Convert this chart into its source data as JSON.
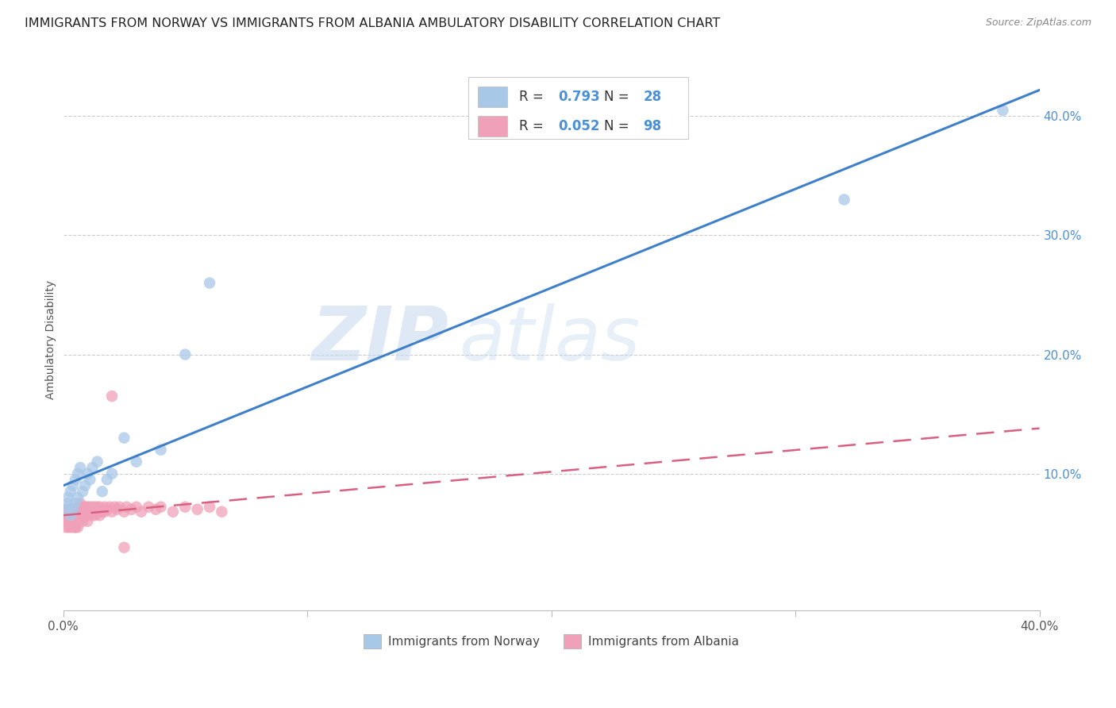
{
  "title": "IMMIGRANTS FROM NORWAY VS IMMIGRANTS FROM ALBANIA AMBULATORY DISABILITY CORRELATION CHART",
  "source": "Source: ZipAtlas.com",
  "ylabel": "Ambulatory Disability",
  "xlim": [
    0.0,
    0.4
  ],
  "ylim": [
    -0.015,
    0.44
  ],
  "norway_R": 0.793,
  "norway_N": 28,
  "albania_R": 0.052,
  "albania_N": 98,
  "norway_color": "#A8C8E8",
  "albania_color": "#F0A0B8",
  "norway_line_color": "#4080C8",
  "albania_line_color": "#D86080",
  "watermark_zip": "ZIP",
  "watermark_atlas": "atlas",
  "norway_x": [
    0.001,
    0.002,
    0.002,
    0.003,
    0.003,
    0.004,
    0.004,
    0.005,
    0.005,
    0.006,
    0.006,
    0.007,
    0.008,
    0.009,
    0.01,
    0.011,
    0.012,
    0.014,
    0.016,
    0.018,
    0.02,
    0.025,
    0.03,
    0.04,
    0.05,
    0.06,
    0.32,
    0.385
  ],
  "norway_y": [
    0.07,
    0.075,
    0.08,
    0.065,
    0.085,
    0.07,
    0.09,
    0.075,
    0.095,
    0.08,
    0.1,
    0.105,
    0.085,
    0.09,
    0.1,
    0.095,
    0.105,
    0.11,
    0.085,
    0.095,
    0.1,
    0.13,
    0.11,
    0.12,
    0.2,
    0.26,
    0.33,
    0.405
  ],
  "albania_x": [
    0.0005,
    0.001,
    0.001,
    0.001,
    0.001,
    0.002,
    0.002,
    0.002,
    0.002,
    0.002,
    0.002,
    0.003,
    0.003,
    0.003,
    0.003,
    0.003,
    0.003,
    0.003,
    0.004,
    0.004,
    0.004,
    0.004,
    0.004,
    0.004,
    0.004,
    0.005,
    0.005,
    0.005,
    0.005,
    0.005,
    0.005,
    0.005,
    0.005,
    0.006,
    0.006,
    0.006,
    0.006,
    0.006,
    0.006,
    0.007,
    0.007,
    0.007,
    0.007,
    0.007,
    0.008,
    0.008,
    0.008,
    0.008,
    0.008,
    0.009,
    0.009,
    0.009,
    0.009,
    0.01,
    0.01,
    0.01,
    0.01,
    0.01,
    0.011,
    0.011,
    0.011,
    0.012,
    0.012,
    0.012,
    0.012,
    0.013,
    0.013,
    0.013,
    0.014,
    0.014,
    0.015,
    0.015,
    0.015,
    0.016,
    0.016,
    0.017,
    0.017,
    0.018,
    0.019,
    0.02,
    0.021,
    0.022,
    0.023,
    0.025,
    0.026,
    0.028,
    0.03,
    0.032,
    0.035,
    0.038,
    0.04,
    0.045,
    0.05,
    0.055,
    0.06,
    0.065,
    0.02,
    0.025
  ],
  "albania_y": [
    0.065,
    0.07,
    0.06,
    0.055,
    0.065,
    0.07,
    0.06,
    0.065,
    0.055,
    0.06,
    0.065,
    0.07,
    0.06,
    0.065,
    0.055,
    0.07,
    0.06,
    0.065,
    0.07,
    0.06,
    0.055,
    0.065,
    0.07,
    0.06,
    0.065,
    0.07,
    0.06,
    0.065,
    0.055,
    0.07,
    0.06,
    0.065,
    0.055,
    0.07,
    0.06,
    0.065,
    0.055,
    0.07,
    0.06,
    0.068,
    0.072,
    0.065,
    0.075,
    0.07,
    0.068,
    0.072,
    0.065,
    0.07,
    0.06,
    0.068,
    0.072,
    0.065,
    0.07,
    0.068,
    0.072,
    0.065,
    0.07,
    0.06,
    0.068,
    0.072,
    0.065,
    0.068,
    0.072,
    0.065,
    0.07,
    0.068,
    0.072,
    0.065,
    0.068,
    0.072,
    0.068,
    0.072,
    0.065,
    0.07,
    0.068,
    0.072,
    0.068,
    0.07,
    0.072,
    0.068,
    0.072,
    0.07,
    0.072,
    0.068,
    0.072,
    0.07,
    0.072,
    0.068,
    0.072,
    0.07,
    0.072,
    0.068,
    0.072,
    0.07,
    0.072,
    0.068,
    0.165,
    0.038
  ],
  "yticks_right": [
    0.1,
    0.2,
    0.3,
    0.4
  ],
  "ytick_labels_right": [
    "10.0%",
    "20.0%",
    "30.0%",
    "40.0%"
  ],
  "xtick_positions": [
    0.0,
    0.1,
    0.2,
    0.3,
    0.4
  ],
  "xtick_labels": [
    "0.0%",
    "",
    "",
    "",
    "40.0%"
  ],
  "grid_color": "#CCCCCC",
  "background_color": "#FFFFFF",
  "title_fontsize": 11.5,
  "source_fontsize": 9,
  "axis_label_fontsize": 10,
  "tick_fontsize": 11,
  "legend_norway_label": "Immigrants from Norway",
  "legend_albania_label": "Immigrants from Albania"
}
